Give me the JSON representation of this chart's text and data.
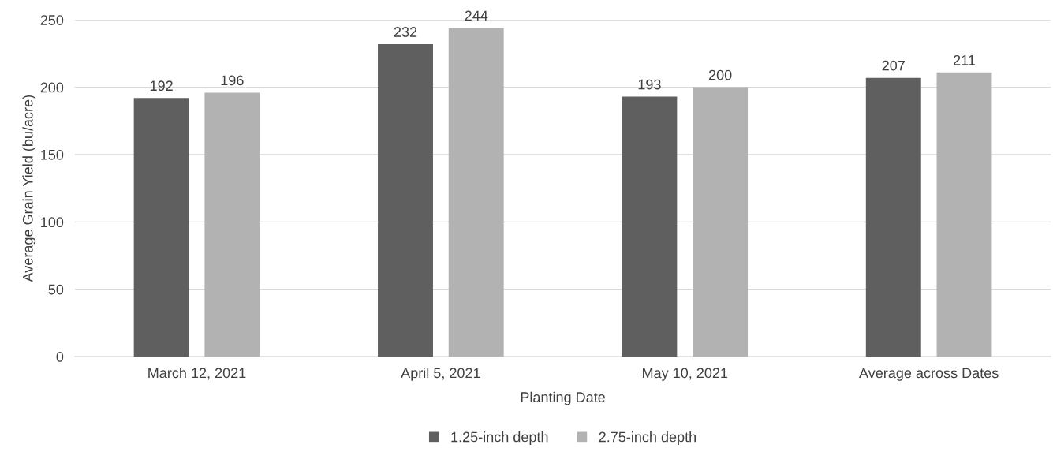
{
  "chart_data": {
    "type": "bar",
    "xlabel": "Planting Date",
    "ylabel": "Average Grain Yield (bu/acre)",
    "categories": [
      "March 12, 2021",
      "April 5, 2021",
      "May 10, 2021",
      "Average across Dates"
    ],
    "series": [
      {
        "name": "1.25-inch depth",
        "color": "#5f5f5f",
        "values": [
          192,
          232,
          193,
          207
        ]
      },
      {
        "name": "2.75-inch depth",
        "color": "#b2b2b2",
        "values": [
          196,
          244,
          200,
          211
        ]
      }
    ],
    "ylim": [
      0,
      250
    ],
    "yticks": [
      0,
      50,
      100,
      150,
      200,
      250
    ],
    "grid": "y",
    "legend": "bottom",
    "data_labels": true
  }
}
